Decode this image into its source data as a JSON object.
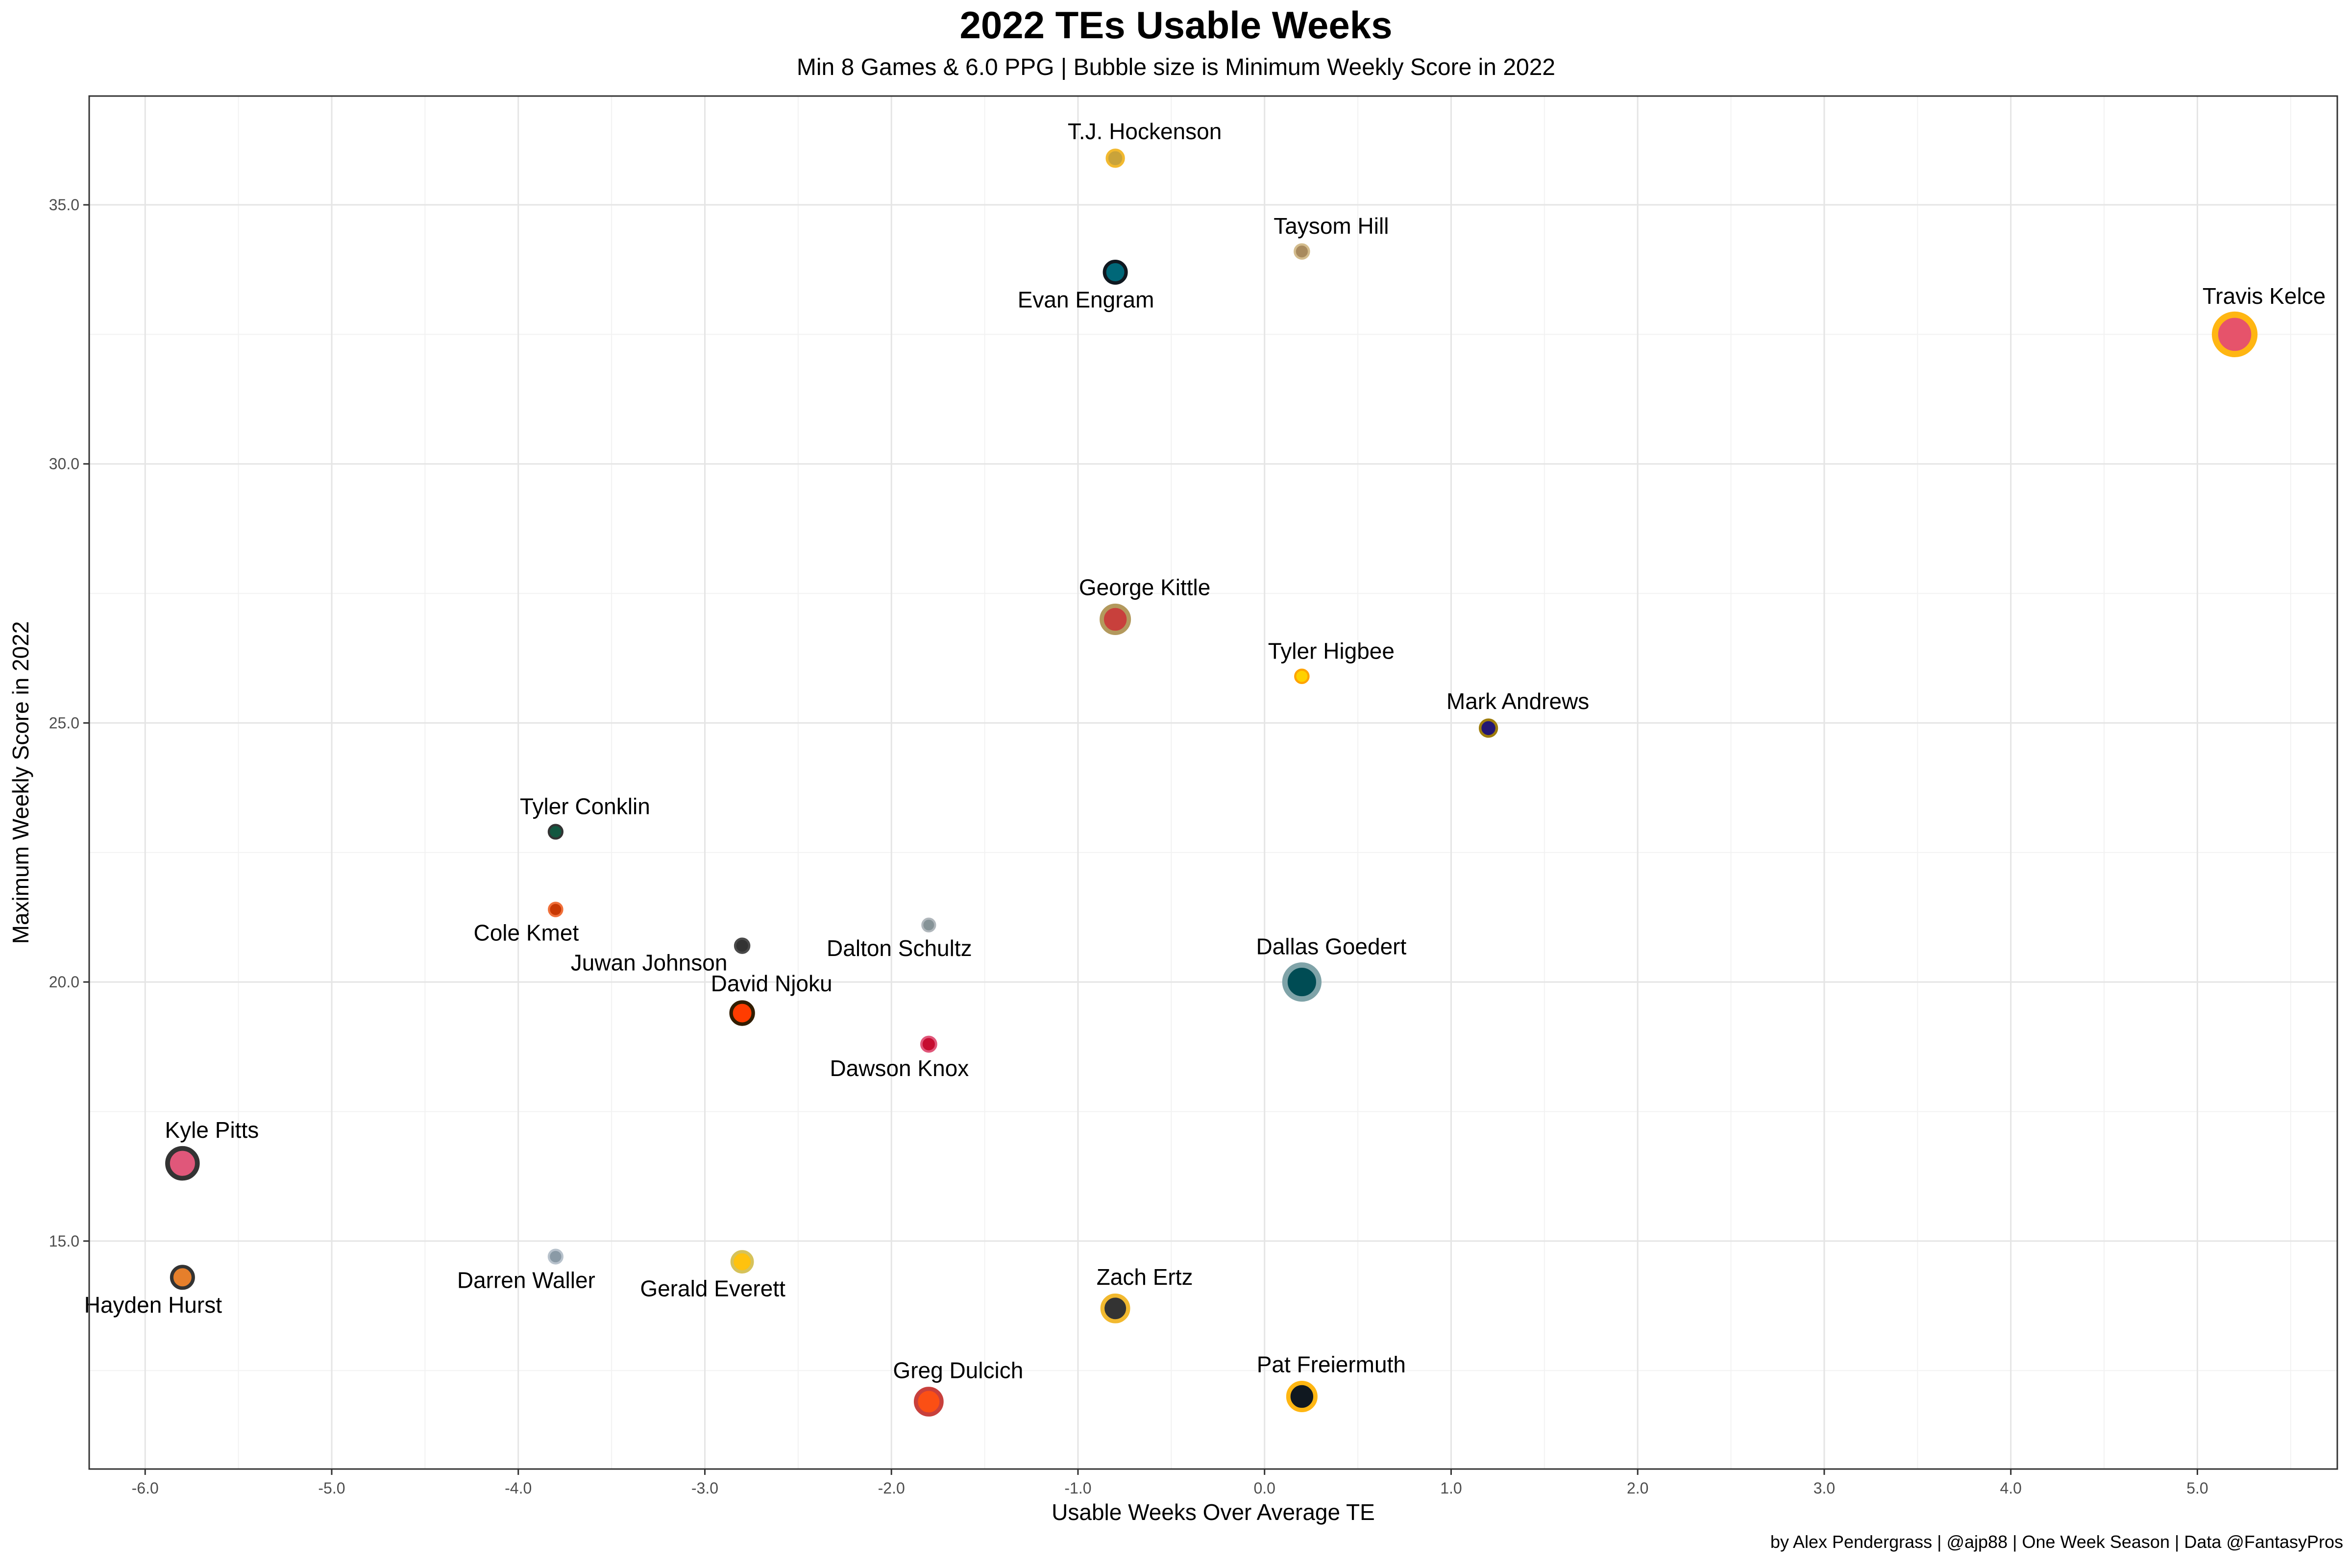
{
  "chart_data": {
    "type": "scatter",
    "title": "2022 TEs Usable Weeks",
    "subtitle": "Min 8 Games & 6.0 PPG | Bubble size is Minimum Weekly Score in 2022",
    "xlabel": "Usable Weeks Over Average TE",
    "ylabel": "Maximum Weekly Score in 2022",
    "caption": "by Alex Pendergrass | @ajp88 | One Week Season | Data @FantasyPros",
    "xlim": [
      -6.3,
      5.75
    ],
    "ylim": [
      10.6,
      37.1
    ],
    "x_ticks": [
      -6,
      -5,
      -4,
      -3,
      -2,
      -1,
      0,
      1,
      2,
      3,
      4,
      5
    ],
    "x_tick_labels": [
      "-6.0",
      "-5.0",
      "-4.0",
      "-3.0",
      "-2.0",
      "-1.0",
      "0.0",
      "1.0",
      "2.0",
      "3.0",
      "4.0",
      "5.0"
    ],
    "y_ticks": [
      15,
      20,
      25,
      30,
      35
    ],
    "y_tick_labels": [
      "15.0",
      "20.0",
      "25.0",
      "30.0",
      "35.0"
    ],
    "grid": true,
    "points": [
      {
        "name": "T.J. Hockenson",
        "x": -0.8,
        "y": 35.9,
        "size": 3.2,
        "fill": "#c9a33a",
        "stroke": "#f2b92f",
        "label_pos": "above"
      },
      {
        "name": "Taysom Hill",
        "x": 0.2,
        "y": 34.1,
        "size": 2.3,
        "fill": "#a88a5e",
        "stroke": "#d3bc8d",
        "label_pos": "above"
      },
      {
        "name": "Evan Engram",
        "x": -0.8,
        "y": 33.7,
        "size": 5.0,
        "fill": "#006778",
        "stroke": "#101820",
        "label_pos": "below"
      },
      {
        "name": "Travis Kelce",
        "x": 5.2,
        "y": 32.5,
        "size": 11.5,
        "fill": "#e6536b",
        "stroke": "#ffb612",
        "label_pos": "above"
      },
      {
        "name": "George Kittle",
        "x": -0.8,
        "y": 27.0,
        "size": 7.0,
        "fill": "#c8403c",
        "stroke": "#b3995d",
        "label_pos": "above"
      },
      {
        "name": "Tyler Higbee",
        "x": 0.2,
        "y": 25.9,
        "size": 2.0,
        "fill": "#ffd100",
        "stroke": "#ffa300",
        "label_pos": "above"
      },
      {
        "name": "Mark Andrews",
        "x": 1.2,
        "y": 24.9,
        "size": 3.2,
        "fill": "#241773",
        "stroke": "#9e7c0c",
        "label_pos": "above"
      },
      {
        "name": "Tyler Conklin",
        "x": -3.8,
        "y": 22.9,
        "size": 2.1,
        "fill": "#125740",
        "stroke": "#333333",
        "label_pos": "above"
      },
      {
        "name": "Cole Kmet",
        "x": -3.8,
        "y": 21.4,
        "size": 2.0,
        "fill": "#c83803",
        "stroke": "#f0703a",
        "label_pos": "below"
      },
      {
        "name": "Dalton Schultz",
        "x": -1.8,
        "y": 21.1,
        "size": 1.8,
        "fill": "#869397",
        "stroke": "#b0b7bc",
        "label_pos": "below"
      },
      {
        "name": "Juwan Johnson",
        "x": -2.8,
        "y": 20.7,
        "size": 2.3,
        "fill": "#333333",
        "stroke": "#4a4a4a",
        "label_pos": "below-left"
      },
      {
        "name": "Dallas Goedert",
        "x": 0.2,
        "y": 20.0,
        "size": 9.5,
        "fill": "#004c54",
        "stroke": "#7fa3a8",
        "label_pos": "above"
      },
      {
        "name": "David Njoku",
        "x": -2.8,
        "y": 19.4,
        "size": 5.2,
        "fill": "#ff3c00",
        "stroke": "#311d00",
        "label_pos": "above"
      },
      {
        "name": "Dawson Knox",
        "x": -1.8,
        "y": 18.8,
        "size": 2.5,
        "fill": "#c60c30",
        "stroke": "#e0577a",
        "label_pos": "below"
      },
      {
        "name": "Kyle Pitts",
        "x": -5.8,
        "y": 16.5,
        "size": 8.0,
        "fill": "#e0577a",
        "stroke": "#333333",
        "label_pos": "above"
      },
      {
        "name": "Hayden Hurst",
        "x": -5.8,
        "y": 14.3,
        "size": 5.0,
        "fill": "#e67f2b",
        "stroke": "#333333",
        "label_pos": "below"
      },
      {
        "name": "Darren Waller",
        "x": -3.8,
        "y": 14.7,
        "size": 2.1,
        "fill": "#8a9aa6",
        "stroke": "#b8c2cc",
        "label_pos": "below"
      },
      {
        "name": "Gerald Everett",
        "x": -2.8,
        "y": 14.6,
        "size": 4.5,
        "fill": "#ffc20e",
        "stroke": "#d6c25a",
        "label_pos": "below"
      },
      {
        "name": "Zach Ertz",
        "x": -0.8,
        "y": 13.7,
        "size": 6.5,
        "fill": "#333333",
        "stroke": "#f2b92f",
        "label_pos": "above"
      },
      {
        "name": "Greg Dulcich",
        "x": -1.8,
        "y": 11.9,
        "size": 6.5,
        "fill": "#fb4f14",
        "stroke": "#c8403c",
        "label_pos": "above"
      },
      {
        "name": "Pat Freiermuth",
        "x": 0.2,
        "y": 12.0,
        "size": 7.0,
        "fill": "#101820",
        "stroke": "#ffb612",
        "label_pos": "above"
      }
    ]
  }
}
